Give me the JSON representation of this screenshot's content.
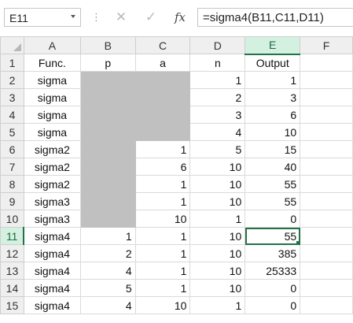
{
  "formula_bar": {
    "name_box": "E11",
    "fx_label": "fx",
    "cancel_glyph": "✕",
    "enter_glyph": "✓",
    "formula": "=sigma4(B11,C11,D11)"
  },
  "sheet": {
    "columns": [
      "A",
      "B",
      "C",
      "D",
      "E",
      "F"
    ],
    "rows": [
      {
        "num": "1",
        "a": "Func.",
        "b": "p",
        "c": "a",
        "d": "n",
        "e": "Output"
      },
      {
        "num": "2",
        "a": "sigma",
        "b": "",
        "c": "",
        "d": "1",
        "e": "1"
      },
      {
        "num": "3",
        "a": "sigma",
        "b": "",
        "c": "",
        "d": "2",
        "e": "3"
      },
      {
        "num": "4",
        "a": "sigma",
        "b": "",
        "c": "",
        "d": "3",
        "e": "6"
      },
      {
        "num": "5",
        "a": "sigma",
        "b": "",
        "c": "",
        "d": "4",
        "e": "10"
      },
      {
        "num": "6",
        "a": "sigma2",
        "b": "",
        "c": "1",
        "d": "5",
        "e": "15"
      },
      {
        "num": "7",
        "a": "sigma2",
        "b": "",
        "c": "6",
        "d": "10",
        "e": "40"
      },
      {
        "num": "8",
        "a": "sigma2",
        "b": "",
        "c": "1",
        "d": "10",
        "e": "55"
      },
      {
        "num": "9",
        "a": "sigma3",
        "b": "",
        "c": "1",
        "d": "10",
        "e": "55"
      },
      {
        "num": "10",
        "a": "sigma3",
        "b": "",
        "c": "10",
        "d": "1",
        "e": "0"
      },
      {
        "num": "11",
        "a": "sigma4",
        "b": "1",
        "c": "1",
        "d": "10",
        "e": "55"
      },
      {
        "num": "12",
        "a": "sigma4",
        "b": "2",
        "c": "1",
        "d": "10",
        "e": "385"
      },
      {
        "num": "13",
        "a": "sigma4",
        "b": "4",
        "c": "1",
        "d": "10",
        "e": "25333"
      },
      {
        "num": "14",
        "a": "sigma4",
        "b": "5",
        "c": "1",
        "d": "10",
        "e": "0"
      },
      {
        "num": "15",
        "a": "sigma4",
        "b": "4",
        "c": "10",
        "d": "1",
        "e": "0"
      }
    ],
    "selected_cell": "E11",
    "colors": {
      "selection": "#217346",
      "blocked_fill": "#c0c0c0",
      "header_bg": "#efefef"
    }
  }
}
